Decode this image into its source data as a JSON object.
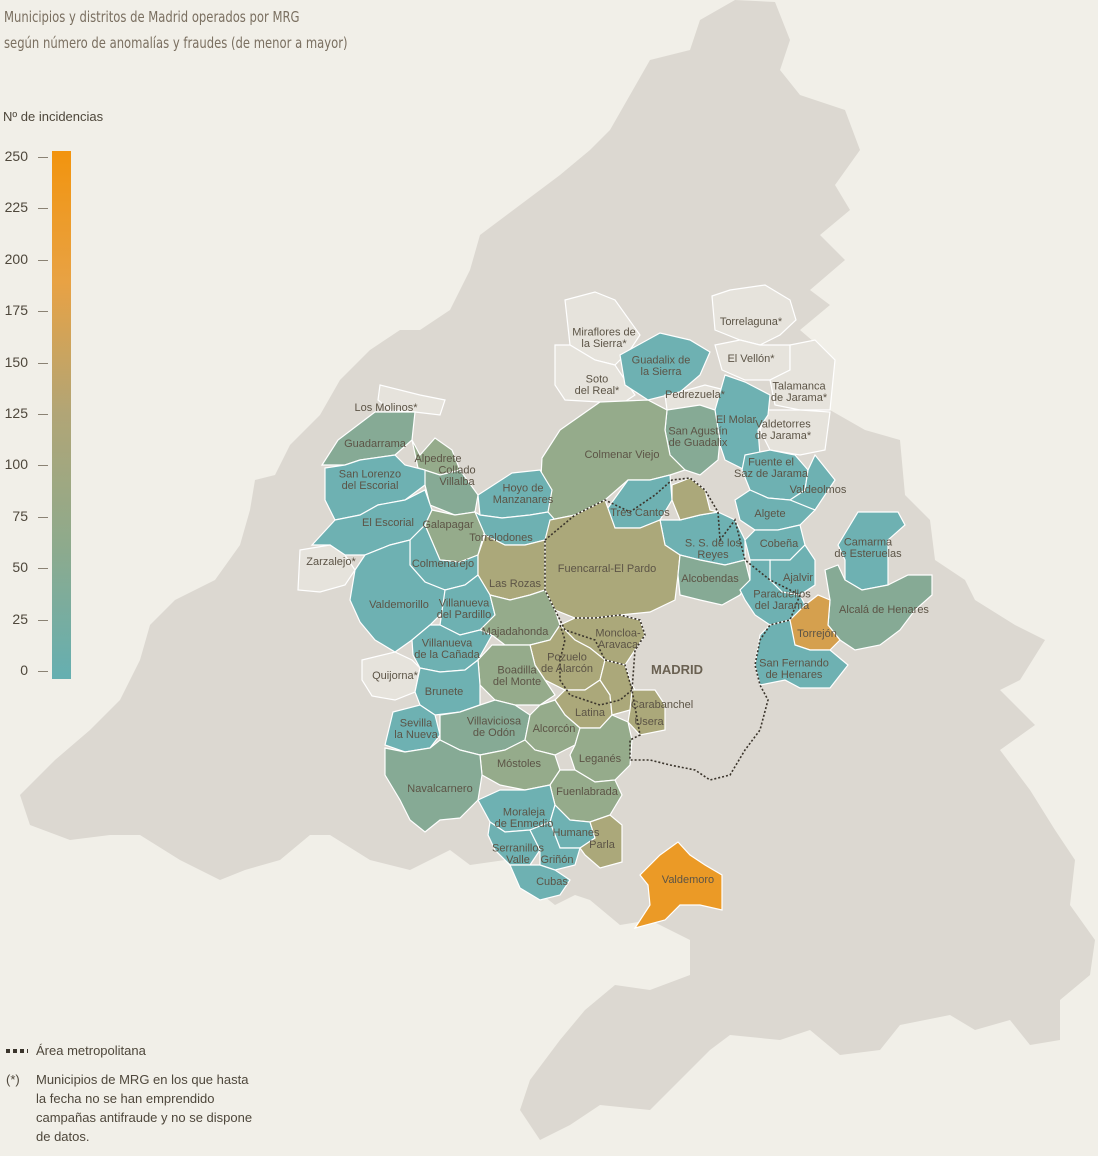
{
  "title_lines": [
    "Municipios y distritos de Madrid operados por MRG",
    "según número de anomalías y fraudes (de menor a mayor)"
  ],
  "color_scale": {
    "title": "Nº de incidencias",
    "ticks": [
      "250",
      "225",
      "200",
      "175",
      "150",
      "125",
      "100",
      "75",
      "50",
      "25",
      "0"
    ],
    "min": 0,
    "max": 250,
    "colors": [
      "#66afb0",
      "#8eaa8c",
      "#b1a576",
      "#e8a244",
      "#f2940e"
    ]
  },
  "map": {
    "capital_label": "MADRID",
    "fill_colors": {
      "background_region": "#dcd8d1",
      "no_data": "#e6e3dc",
      "low": "#6eb1b2",
      "medium_low": "#86aa95",
      "medium": "#95ab8b",
      "medium_high": "#aba87a",
      "high": "#d5a04e",
      "highest": "#eb9a26"
    },
    "municipalities": [
      {
        "name": [
          "Miraflores de",
          "la Sierra*"
        ],
        "fill": "no_data"
      },
      {
        "name": [
          "Guadalix de",
          "la Sierra"
        ],
        "fill": "low"
      },
      {
        "name": [
          "Soto",
          "del Real*"
        ],
        "fill": "no_data"
      },
      {
        "name": [
          "Torrelaguna*"
        ],
        "fill": "no_data"
      },
      {
        "name": [
          "El Vellón*"
        ],
        "fill": "no_data"
      },
      {
        "name": [
          "Talamanca",
          "de Jarama*"
        ],
        "fill": "no_data"
      },
      {
        "name": [
          "Pedrezuela*"
        ],
        "fill": "no_data"
      },
      {
        "name": [
          "El Molar"
        ],
        "fill": "low"
      },
      {
        "name": [
          "Valdetorres",
          "de Jarama*"
        ],
        "fill": "no_data"
      },
      {
        "name": [
          "San Agustín",
          "de Guadalix"
        ],
        "fill": "medium_low"
      },
      {
        "name": [
          "Los Molinos*"
        ],
        "fill": "no_data"
      },
      {
        "name": [
          "Guadarrama"
        ],
        "fill": "medium_low"
      },
      {
        "name": [
          "Alpedrete"
        ],
        "fill": "medium"
      },
      {
        "name": [
          "Collado",
          "Villalba"
        ],
        "fill": "medium_low"
      },
      {
        "name": [
          "San Lorenzo",
          "del Escorial"
        ],
        "fill": "low"
      },
      {
        "name": [
          "El Escorial"
        ],
        "fill": "low"
      },
      {
        "name": [
          "Zarzalejo*"
        ],
        "fill": "no_data"
      },
      {
        "name": [
          "Colmenar Viejo"
        ],
        "fill": "medium"
      },
      {
        "name": [
          "Hoyo de",
          "Manzanares"
        ],
        "fill": "low"
      },
      {
        "name": [
          "Fuente el",
          "Saz de Jarama"
        ],
        "fill": "low"
      },
      {
        "name": [
          "Valdeolmos"
        ],
        "fill": "low"
      },
      {
        "name": [
          "Tres Cantos"
        ],
        "fill": "low"
      },
      {
        "name": [
          "Algete"
        ],
        "fill": "low"
      },
      {
        "name": [
          "Galapagar"
        ],
        "fill": "medium"
      },
      {
        "name": [
          "Torrelodones"
        ],
        "fill": "low"
      },
      {
        "name": [
          "S. S. de los",
          "Reyes"
        ],
        "fill": "low"
      },
      {
        "name": [
          "Cobeña"
        ],
        "fill": "low"
      },
      {
        "name": [
          "Camarma",
          "de Esteruelas"
        ],
        "fill": "low"
      },
      {
        "name": [
          "Fuencarral-El Pardo"
        ],
        "fill": "medium_high"
      },
      {
        "name": [
          "Las Rozas"
        ],
        "fill": "medium_high"
      },
      {
        "name": [
          "Colmenarejo"
        ],
        "fill": "low"
      },
      {
        "name": [
          "Alcobendas"
        ],
        "fill": "medium_low"
      },
      {
        "name": [
          "Ajalvir"
        ],
        "fill": "low"
      },
      {
        "name": [
          "Valdemorillo"
        ],
        "fill": "low"
      },
      {
        "name": [
          "Villanueva",
          "del Pardillo"
        ],
        "fill": "low"
      },
      {
        "name": [
          "Paracuellos",
          "del Jarama"
        ],
        "fill": "low"
      },
      {
        "name": [
          "Alcalá de Henares"
        ],
        "fill": "medium_low"
      },
      {
        "name": [
          "Torrejón"
        ],
        "fill": "high"
      },
      {
        "name": [
          "Majadahonda"
        ],
        "fill": "medium"
      },
      {
        "name": [
          "Moncloa-",
          "Aravaca"
        ],
        "fill": "medium_high"
      },
      {
        "name": [
          "Villanueva",
          "de la Cañada"
        ],
        "fill": "low"
      },
      {
        "name": [
          "Pozuelo",
          "de Alarcón"
        ],
        "fill": "medium_high"
      },
      {
        "name": [
          "San Fernando",
          "de Henares"
        ],
        "fill": "low"
      },
      {
        "name": [
          "Quijorna*"
        ],
        "fill": "no_data"
      },
      {
        "name": [
          "Boadilla",
          "del Monte"
        ],
        "fill": "medium"
      },
      {
        "name": [
          "Brunete"
        ],
        "fill": "low"
      },
      {
        "name": [
          "Carabanchel"
        ],
        "fill": "medium_high"
      },
      {
        "name": [
          "Latina"
        ],
        "fill": "medium_high"
      },
      {
        "name": [
          "Usera"
        ],
        "fill": "medium_high"
      },
      {
        "name": [
          "Sevilla",
          "la Nueva"
        ],
        "fill": "low"
      },
      {
        "name": [
          "Villaviciosa",
          "de Odón"
        ],
        "fill": "medium_low"
      },
      {
        "name": [
          "Alcorcón"
        ],
        "fill": "medium"
      },
      {
        "name": [
          "Leganés"
        ],
        "fill": "medium"
      },
      {
        "name": [
          "Móstoles"
        ],
        "fill": "medium"
      },
      {
        "name": [
          "Navalcarnero"
        ],
        "fill": "medium_low"
      },
      {
        "name": [
          "Fuenlabrada"
        ],
        "fill": "medium"
      },
      {
        "name": [
          "Moraleja",
          "de Enmedio"
        ],
        "fill": "low"
      },
      {
        "name": [
          "Humanes"
        ],
        "fill": "low"
      },
      {
        "name": [
          "Parla"
        ],
        "fill": "medium_high"
      },
      {
        "name": [
          "Serranillos",
          "Valle"
        ],
        "fill": "low"
      },
      {
        "name": [
          "Griñón"
        ],
        "fill": "low"
      },
      {
        "name": [
          "Cubas"
        ],
        "fill": "low"
      },
      {
        "name": [
          "Valdemoro"
        ],
        "fill": "highest"
      }
    ]
  },
  "legend": {
    "metro_area": "Área metropolitana",
    "asterisk_symbol": "(*)",
    "asterisk_note": "Municipios de MRG en los que hasta la fecha no se han emprendido campañas antifraude y no se dispone de datos."
  }
}
